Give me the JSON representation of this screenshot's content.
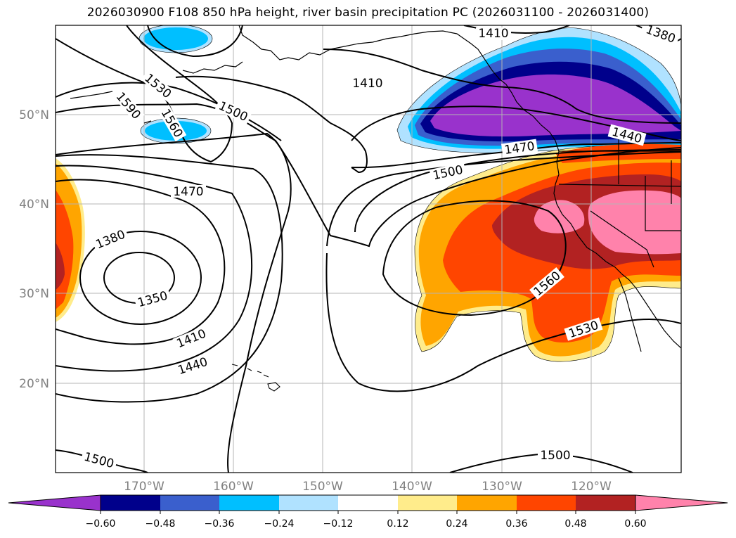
{
  "title": "2026030900 F108 850 hPa height, river basin precipitation PC (2026031100 - 2026031400)",
  "map": {
    "lon_labels": [
      "170°W",
      "160°W",
      "150°W",
      "140°W",
      "130°W",
      "120°W"
    ],
    "lat_labels": [
      "50°N",
      "40°N",
      "30°N",
      "20°N"
    ],
    "contour_labels": [
      "1410",
      "1380",
      "1410",
      "1530",
      "1590",
      "1560",
      "1500",
      "1440",
      "1470",
      "1470",
      "1500",
      "1380",
      "1350",
      "1410",
      "1440",
      "1560",
      "1530",
      "1500",
      "1500"
    ]
  },
  "colorbar": {
    "colors": [
      "#9932cc",
      "#00008b",
      "#3a5fcd",
      "#00bfff",
      "#b0e2ff",
      "#ffffff",
      "#ffec8b",
      "#ffa500",
      "#ff4500",
      "#b22222",
      "#ff82ab"
    ],
    "tick_labels": [
      "−0.60",
      "−0.48",
      "−0.36",
      "−0.24",
      "−0.12",
      "0.12",
      "0.24",
      "0.36",
      "0.48",
      "0.60"
    ]
  }
}
